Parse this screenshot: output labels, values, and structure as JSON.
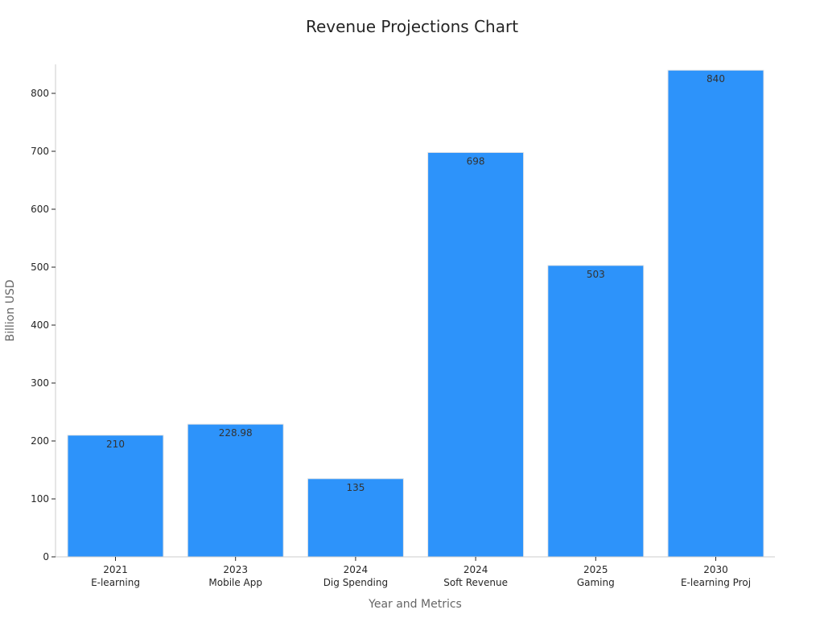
{
  "chart_data": {
    "type": "bar",
    "title": "Revenue Projections Chart",
    "xlabel": "Year and Metrics",
    "ylabel": "Billion USD",
    "categories": [
      [
        "2021",
        "E-learning"
      ],
      [
        "2023",
        "Mobile App"
      ],
      [
        "2024",
        "Dig Spending"
      ],
      [
        "2024",
        "Soft Revenue"
      ],
      [
        "2025",
        "Gaming"
      ],
      [
        "2030",
        "E-learning Proj"
      ]
    ],
    "values": [
      210,
      228.98,
      135,
      698,
      503,
      840
    ],
    "data_labels": [
      "210",
      "228.98",
      "135",
      "698",
      "503",
      "840"
    ],
    "ylim": [
      0,
      850
    ],
    "yticks": [
      0,
      100,
      200,
      300,
      400,
      500,
      600,
      700,
      800
    ],
    "grid": false,
    "bar_color": "#2d93fa",
    "bar_edge_color": "#e6e6e6"
  }
}
